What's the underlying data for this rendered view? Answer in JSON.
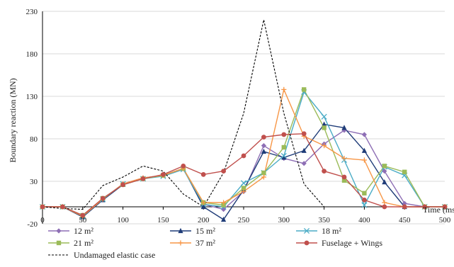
{
  "chart_data": {
    "type": "line",
    "title": "",
    "xlabel": "Time (ms)",
    "ylabel": "Boundary reaction (MN)",
    "xlim": [
      0,
      500
    ],
    "ylim": [
      -20,
      230
    ],
    "xticks": [
      0,
      50,
      100,
      150,
      200,
      250,
      300,
      350,
      400,
      450,
      500
    ],
    "yticks": [
      -20,
      30,
      80,
      130,
      180,
      230
    ],
    "grid": "horizontal",
    "legend_position": "bottom",
    "series": [
      {
        "name": "12 m²",
        "color": "#8e6fb5",
        "marker": "diamond",
        "dash": "solid",
        "x": [
          0,
          25,
          50,
          75,
          100,
          125,
          150,
          175,
          200,
          225,
          250,
          275,
          300,
          325,
          350,
          375,
          400,
          425,
          450,
          475,
          500
        ],
        "y": [
          0,
          0,
          -11,
          9,
          27,
          34,
          37,
          45,
          3,
          -3,
          18,
          72,
          57,
          51,
          74,
          90,
          85,
          42,
          4,
          0,
          0
        ]
      },
      {
        "name": "15 m²",
        "color": "#1f3c78",
        "marker": "triangle",
        "dash": "solid",
        "x": [
          0,
          25,
          50,
          75,
          100,
          125,
          150,
          175,
          200,
          225,
          250,
          275,
          300,
          325,
          350,
          375,
          400,
          425,
          450,
          475,
          500
        ],
        "y": [
          0,
          0,
          -12,
          8,
          26,
          33,
          37,
          45,
          0,
          -15,
          20,
          65,
          58,
          66,
          97,
          93,
          66,
          29,
          0,
          0,
          0
        ]
      },
      {
        "name": "18 m²",
        "color": "#4bacc6",
        "marker": "x",
        "dash": "solid",
        "x": [
          0,
          25,
          50,
          75,
          100,
          125,
          150,
          175,
          200,
          225,
          250,
          275,
          300,
          325,
          350,
          375,
          400,
          425,
          450,
          475,
          500
        ],
        "y": [
          0,
          0,
          -11,
          9,
          27,
          33,
          36,
          44,
          3,
          0,
          28,
          40,
          60,
          135,
          106,
          55,
          2,
          47,
          37,
          0,
          0
        ]
      },
      {
        "name": "21 m²",
        "color": "#9bbb59",
        "marker": "square",
        "dash": "solid",
        "x": [
          0,
          25,
          50,
          75,
          100,
          125,
          150,
          175,
          200,
          225,
          250,
          275,
          300,
          325,
          350,
          375,
          400,
          425,
          450,
          475,
          500
        ],
        "y": [
          0,
          0,
          -10,
          10,
          26,
          33,
          37,
          45,
          5,
          2,
          22,
          40,
          70,
          138,
          93,
          31,
          16,
          48,
          41,
          0,
          0
        ]
      },
      {
        "name": "37 m²",
        "color": "#f79646",
        "marker": "plus",
        "dash": "solid",
        "x": [
          0,
          25,
          50,
          75,
          100,
          125,
          150,
          175,
          200,
          225,
          250,
          275,
          300,
          325,
          350,
          375,
          400,
          425,
          450,
          475,
          500
        ],
        "y": [
          0,
          0,
          -11,
          9,
          27,
          34,
          37,
          45,
          5,
          5,
          18,
          35,
          138,
          83,
          72,
          57,
          55,
          5,
          0,
          0,
          0
        ]
      },
      {
        "name": "Fuselage + Wings",
        "color": "#c0504d",
        "marker": "circle",
        "dash": "solid",
        "x": [
          0,
          25,
          50,
          75,
          100,
          125,
          150,
          175,
          200,
          225,
          250,
          275,
          300,
          325,
          350,
          375,
          400,
          425,
          450,
          475,
          500
        ],
        "y": [
          0,
          0,
          -10,
          10,
          26,
          33,
          38,
          48,
          38,
          42,
          60,
          82,
          85,
          86,
          42,
          35,
          8,
          0,
          0,
          0,
          0
        ]
      },
      {
        "name": "Undamaged elastic case",
        "color": "#000000",
        "marker": "none",
        "dash": "dashed",
        "x": [
          0,
          25,
          50,
          75,
          100,
          125,
          150,
          175,
          200,
          225,
          250,
          275,
          300,
          325,
          350
        ],
        "y": [
          0,
          -2,
          -3,
          25,
          35,
          48,
          42,
          15,
          0,
          40,
          110,
          220,
          110,
          27,
          0
        ]
      }
    ]
  }
}
